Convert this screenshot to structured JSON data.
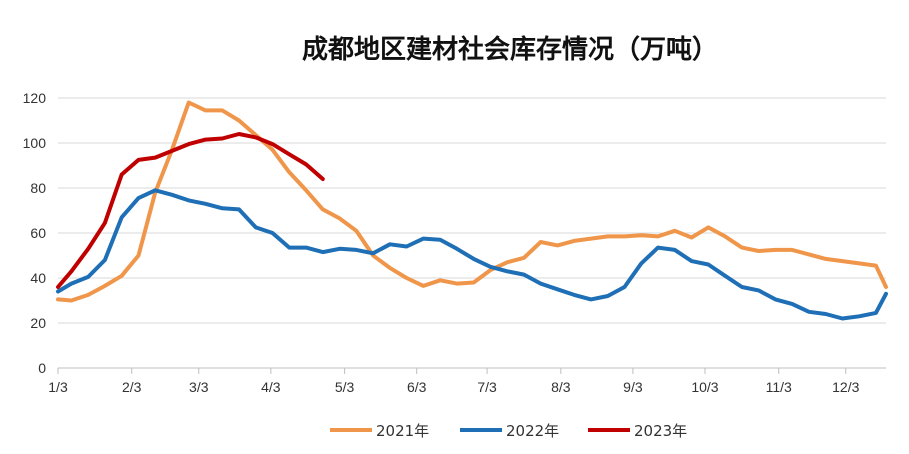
{
  "chart_data": {
    "type": "line",
    "title": "成都地区建材社会库存情况（万吨）",
    "xlabel": "",
    "ylabel": "",
    "ylim": [
      0,
      120
    ],
    "yticks": [
      0,
      20,
      40,
      60,
      80,
      100,
      120
    ],
    "x_tick_labels": [
      "1/3",
      "2/3",
      "3/3",
      "4/3",
      "5/3",
      "6/3",
      "7/3",
      "8/3",
      "9/3",
      "10/3",
      "11/3",
      "12/3"
    ],
    "x_tick_weeks": [
      0,
      4.4,
      8.4,
      12.7,
      17.1,
      21.4,
      25.6,
      30,
      34.3,
      38.6,
      43,
      47
    ],
    "x_week_max": 49.4,
    "grid": "horizontal",
    "legend_position": "bottom",
    "series": [
      {
        "name": "2021年",
        "color": "#F0964A",
        "x": [
          0,
          0.8,
          1.8,
          2.8,
          3.8,
          4.8,
          5.8,
          6.8,
          7.8,
          8.8,
          9.8,
          10.8,
          11.8,
          12.8,
          13.8,
          14.8,
          15.8,
          16.8,
          17.8,
          18.8,
          19.8,
          20.8,
          21.8,
          22.8,
          23.8,
          24.8,
          25.8,
          26.8,
          27.8,
          28.8,
          29.8,
          30.8,
          31.8,
          32.8,
          33.8,
          34.8,
          35.8,
          36.8,
          37.8,
          38.8,
          39.8,
          40.8,
          41.8,
          42.8,
          43.8,
          44.8,
          45.8,
          46.8,
          47.8,
          48.8,
          49.4
        ],
        "values": [
          30.5,
          30,
          32.5,
          36.5,
          41,
          50,
          78,
          97,
          118,
          114.5,
          114.5,
          110,
          103.5,
          97,
          87,
          79,
          70.5,
          66.5,
          61,
          50,
          44.5,
          40,
          36.5,
          39,
          37.5,
          38,
          43.5,
          47,
          49,
          56,
          54.5,
          56.5,
          57.5,
          58.5,
          58.5,
          59,
          58.5,
          61,
          58,
          62.5,
          58.5,
          53.5,
          52,
          52.5,
          52.5,
          50.5,
          48.5,
          47.5,
          46.5,
          45.5,
          36
        ]
      },
      {
        "name": "2022年",
        "color": "#1E6FB5",
        "x": [
          0,
          0.8,
          1.8,
          2.8,
          3.8,
          4.8,
          5.8,
          6.8,
          7.8,
          8.8,
          9.8,
          10.8,
          11.8,
          12.8,
          13.8,
          14.8,
          15.8,
          16.8,
          17.8,
          18.8,
          19.8,
          20.8,
          21.8,
          22.8,
          23.8,
          24.8,
          25.8,
          26.8,
          27.8,
          28.8,
          29.8,
          30.8,
          31.8,
          32.8,
          33.8,
          34.8,
          35.8,
          36.8,
          37.8,
          38.8,
          39.8,
          40.8,
          41.8,
          42.8,
          43.8,
          44.8,
          45.8,
          46.8,
          47.8,
          48.8,
          49.4
        ],
        "values": [
          34,
          37.5,
          40.5,
          48,
          67,
          75.5,
          79,
          77,
          74.5,
          73,
          71,
          70.5,
          62.5,
          60,
          53.5,
          53.5,
          51.5,
          53,
          52.5,
          51,
          55,
          54,
          57.5,
          57,
          53,
          48.5,
          45,
          43,
          41.5,
          37.5,
          35,
          32.5,
          30.5,
          32,
          36,
          46.5,
          53.5,
          52.5,
          47.5,
          46,
          41,
          36,
          34.5,
          30.5,
          28.5,
          25,
          24,
          22,
          23,
          24.5,
          33
        ]
      },
      {
        "name": "2023年",
        "color": "#C00000",
        "x": [
          0,
          0.8,
          1.8,
          2.8,
          3.8,
          4.8,
          5.8,
          6.8,
          7.8,
          8.8,
          9.8,
          10.8,
          11.8,
          12.8,
          13.8,
          14.8,
          15.8
        ],
        "values": [
          36,
          43,
          53,
          64.5,
          86,
          92.5,
          93.5,
          96.5,
          99.5,
          101.5,
          102,
          104,
          102.5,
          99.5,
          95,
          90.5,
          84
        ]
      }
    ]
  }
}
